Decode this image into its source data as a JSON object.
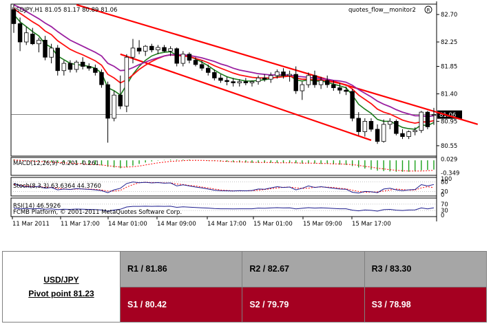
{
  "chart_data": {
    "type": "candlestick",
    "title": "USDJPY,H1  81.05 81.17 80.89 81.06",
    "indicator_label": "quotes_flow__monitor2",
    "price_axis": {
      "ticks": [
        "82.70",
        "82.25",
        "81.85",
        "81.40",
        "80.95",
        "80.55"
      ],
      "ylim": [
        80.38,
        82.87
      ],
      "current_price": "81.06"
    },
    "time_axis": {
      "ticks": [
        "11 Mar 2011",
        "11 Mar 17:00",
        "14 Mar 01:00",
        "14 Mar 09:00",
        "14 Mar 17:00",
        "15 Mar 01:00",
        "15 Mar 09:00",
        "15 Mar 17:00"
      ]
    },
    "candles": [
      {
        "o": 82.78,
        "h": 82.86,
        "l": 82.4,
        "c": 82.55
      },
      {
        "o": 82.55,
        "h": 82.65,
        "l": 82.1,
        "c": 82.25
      },
      {
        "o": 82.25,
        "h": 82.5,
        "l": 82.2,
        "c": 82.4
      },
      {
        "o": 82.38,
        "h": 82.48,
        "l": 82.2,
        "c": 82.22
      },
      {
        "o": 82.22,
        "h": 82.32,
        "l": 82.08,
        "c": 82.28
      },
      {
        "o": 82.28,
        "h": 82.35,
        "l": 81.95,
        "c": 82.0
      },
      {
        "o": 82.0,
        "h": 82.22,
        "l": 81.9,
        "c": 82.15
      },
      {
        "o": 82.15,
        "h": 82.2,
        "l": 81.7,
        "c": 81.78
      },
      {
        "o": 81.78,
        "h": 81.95,
        "l": 81.7,
        "c": 81.9
      },
      {
        "o": 81.9,
        "h": 81.95,
        "l": 81.75,
        "c": 81.8
      },
      {
        "o": 81.8,
        "h": 81.95,
        "l": 81.75,
        "c": 81.92
      },
      {
        "o": 81.92,
        "h": 82.0,
        "l": 81.8,
        "c": 81.85
      },
      {
        "o": 81.85,
        "h": 81.9,
        "l": 81.78,
        "c": 81.82
      },
      {
        "o": 81.82,
        "h": 81.88,
        "l": 81.7,
        "c": 81.75
      },
      {
        "o": 81.75,
        "h": 81.8,
        "l": 81.5,
        "c": 81.55
      },
      {
        "o": 81.55,
        "h": 81.6,
        "l": 80.6,
        "c": 81.0
      },
      {
        "o": 81.0,
        "h": 81.45,
        "l": 80.95,
        "c": 81.38
      },
      {
        "o": 81.38,
        "h": 81.7,
        "l": 81.15,
        "c": 81.2
      },
      {
        "o": 81.2,
        "h": 82.05,
        "l": 81.1,
        "c": 82.0
      },
      {
        "o": 82.0,
        "h": 82.3,
        "l": 81.9,
        "c": 82.15
      },
      {
        "o": 82.15,
        "h": 82.28,
        "l": 82.05,
        "c": 82.1
      },
      {
        "o": 82.1,
        "h": 82.2,
        "l": 82.02,
        "c": 82.18
      },
      {
        "o": 82.18,
        "h": 82.22,
        "l": 82.08,
        "c": 82.12
      },
      {
        "o": 82.12,
        "h": 82.2,
        "l": 82.05,
        "c": 82.16
      },
      {
        "o": 82.16,
        "h": 82.2,
        "l": 82.08,
        "c": 82.1
      },
      {
        "o": 82.1,
        "h": 82.18,
        "l": 82.02,
        "c": 82.14
      },
      {
        "o": 82.14,
        "h": 82.16,
        "l": 81.85,
        "c": 81.9
      },
      {
        "o": 81.9,
        "h": 82.1,
        "l": 81.85,
        "c": 82.05
      },
      {
        "o": 82.05,
        "h": 82.08,
        "l": 81.9,
        "c": 81.95
      },
      {
        "o": 81.95,
        "h": 82.0,
        "l": 81.85,
        "c": 81.88
      },
      {
        "o": 81.88,
        "h": 81.95,
        "l": 81.78,
        "c": 81.82
      },
      {
        "o": 81.82,
        "h": 81.88,
        "l": 81.7,
        "c": 81.75
      },
      {
        "o": 81.75,
        "h": 81.8,
        "l": 81.62,
        "c": 81.66
      },
      {
        "o": 81.66,
        "h": 81.72,
        "l": 81.58,
        "c": 81.62
      },
      {
        "o": 81.62,
        "h": 81.68,
        "l": 81.54,
        "c": 81.6
      },
      {
        "o": 81.6,
        "h": 81.66,
        "l": 81.52,
        "c": 81.58
      },
      {
        "o": 81.58,
        "h": 81.64,
        "l": 81.52,
        "c": 81.6
      },
      {
        "o": 81.6,
        "h": 81.66,
        "l": 81.54,
        "c": 81.58
      },
      {
        "o": 81.58,
        "h": 81.62,
        "l": 81.52,
        "c": 81.6
      },
      {
        "o": 81.6,
        "h": 81.7,
        "l": 81.55,
        "c": 81.66
      },
      {
        "o": 81.66,
        "h": 81.72,
        "l": 81.6,
        "c": 81.64
      },
      {
        "o": 81.64,
        "h": 81.75,
        "l": 81.58,
        "c": 81.7
      },
      {
        "o": 81.7,
        "h": 81.8,
        "l": 81.65,
        "c": 81.76
      },
      {
        "o": 81.76,
        "h": 81.82,
        "l": 81.65,
        "c": 81.7
      },
      {
        "o": 81.7,
        "h": 81.78,
        "l": 81.6,
        "c": 81.72
      },
      {
        "o": 81.72,
        "h": 81.85,
        "l": 81.4,
        "c": 81.45
      },
      {
        "o": 81.45,
        "h": 81.6,
        "l": 81.3,
        "c": 81.55
      },
      {
        "o": 81.55,
        "h": 81.75,
        "l": 81.5,
        "c": 81.7
      },
      {
        "o": 81.7,
        "h": 81.78,
        "l": 81.5,
        "c": 81.55
      },
      {
        "o": 81.55,
        "h": 81.68,
        "l": 81.48,
        "c": 81.62
      },
      {
        "o": 81.62,
        "h": 81.7,
        "l": 81.5,
        "c": 81.55
      },
      {
        "o": 81.55,
        "h": 81.62,
        "l": 81.45,
        "c": 81.5
      },
      {
        "o": 81.5,
        "h": 81.58,
        "l": 81.4,
        "c": 81.46
      },
      {
        "o": 81.46,
        "h": 81.52,
        "l": 81.38,
        "c": 81.44
      },
      {
        "o": 81.44,
        "h": 81.48,
        "l": 80.95,
        "c": 81.0
      },
      {
        "o": 81.0,
        "h": 81.1,
        "l": 80.72,
        "c": 80.78
      },
      {
        "o": 80.78,
        "h": 81.0,
        "l": 80.7,
        "c": 80.95
      },
      {
        "o": 80.95,
        "h": 81.0,
        "l": 80.78,
        "c": 80.82
      },
      {
        "o": 80.82,
        "h": 80.9,
        "l": 80.58,
        "c": 80.62
      },
      {
        "o": 80.62,
        "h": 80.98,
        "l": 80.6,
        "c": 80.9
      },
      {
        "o": 80.9,
        "h": 81.0,
        "l": 80.82,
        "c": 80.95
      },
      {
        "o": 80.95,
        "h": 80.98,
        "l": 80.72,
        "c": 80.75
      },
      {
        "o": 80.75,
        "h": 80.82,
        "l": 80.66,
        "c": 80.7
      },
      {
        "o": 80.7,
        "h": 80.8,
        "l": 80.66,
        "c": 80.78
      },
      {
        "o": 80.78,
        "h": 80.85,
        "l": 80.72,
        "c": 80.8
      },
      {
        "o": 80.8,
        "h": 81.12,
        "l": 80.76,
        "c": 81.1
      },
      {
        "o": 81.1,
        "h": 81.12,
        "l": 80.82,
        "c": 80.86
      },
      {
        "o": 81.05,
        "h": 81.17,
        "l": 80.89,
        "c": 81.06
      }
    ],
    "moving_averages": [
      {
        "name": "MA-fast",
        "color": "#1a7a1a",
        "values": [
          82.7,
          82.58,
          82.5,
          82.42,
          82.35,
          82.22,
          82.16,
          82.02,
          81.96,
          81.9,
          81.88,
          81.87,
          81.85,
          81.82,
          81.74,
          81.5,
          81.45,
          81.38,
          81.55,
          81.72,
          81.85,
          81.95,
          82.02,
          82.06,
          82.08,
          82.09,
          82.03,
          82.03,
          82.01,
          81.97,
          81.92,
          81.86,
          81.79,
          81.73,
          81.68,
          81.65,
          81.63,
          81.61,
          81.61,
          81.62,
          81.63,
          81.65,
          81.68,
          81.69,
          81.7,
          81.63,
          81.61,
          81.63,
          81.61,
          81.61,
          81.59,
          81.56,
          81.53,
          81.5,
          81.38,
          81.23,
          81.15,
          81.08,
          80.98,
          80.95,
          80.95,
          80.9,
          80.85,
          80.83,
          80.82,
          80.89,
          80.88,
          80.93
        ]
      },
      {
        "name": "MA-mid",
        "color": "#ff1010",
        "values": [
          82.8,
          82.72,
          82.65,
          82.58,
          82.52,
          82.43,
          82.37,
          82.27,
          82.2,
          82.13,
          82.08,
          82.04,
          81.99,
          81.94,
          81.87,
          81.72,
          81.66,
          81.58,
          81.63,
          81.71,
          81.8,
          81.87,
          81.93,
          81.98,
          82.02,
          82.04,
          82.03,
          82.02,
          82.01,
          81.98,
          81.95,
          81.91,
          81.86,
          81.82,
          81.78,
          81.74,
          81.71,
          81.69,
          81.67,
          81.66,
          81.66,
          81.66,
          81.67,
          81.68,
          81.69,
          81.66,
          81.64,
          81.64,
          81.63,
          81.63,
          81.61,
          81.59,
          81.57,
          81.55,
          81.48,
          81.38,
          81.31,
          81.24,
          81.15,
          81.1,
          81.07,
          81.02,
          80.97,
          80.94,
          80.92,
          80.94,
          80.94,
          80.96
        ]
      },
      {
        "name": "MA-slow",
        "color": "#9a1fa0",
        "values": [
          82.86,
          82.81,
          82.75,
          82.69,
          82.63,
          82.56,
          82.5,
          82.42,
          82.35,
          82.28,
          82.23,
          82.18,
          82.13,
          82.08,
          82.02,
          81.9,
          81.85,
          81.78,
          81.79,
          81.83,
          81.88,
          81.92,
          81.96,
          81.99,
          82.02,
          82.04,
          82.04,
          82.04,
          82.03,
          82.01,
          81.99,
          81.96,
          81.93,
          81.89,
          81.86,
          81.82,
          81.79,
          81.77,
          81.75,
          81.73,
          81.72,
          81.71,
          81.71,
          81.71,
          81.71,
          81.69,
          81.68,
          81.67,
          81.66,
          81.65,
          81.64,
          81.62,
          81.61,
          81.59,
          81.54,
          81.47,
          81.41,
          81.35,
          81.28,
          81.23,
          81.19,
          81.14,
          81.1,
          81.07,
          81.04,
          81.04,
          81.03,
          81.04
        ]
      }
    ],
    "channel_lines": [
      {
        "name": "upper-trendline",
        "color": "#ff0000",
        "from": {
          "bar": 10,
          "price": 82.86
        },
        "to": {
          "bar": 74,
          "price": 80.9
        }
      },
      {
        "name": "lower-trendline",
        "color": "#ff0000",
        "from": {
          "bar": 17,
          "price": 82.05
        },
        "to": {
          "bar": 57,
          "price": 80.64
        }
      }
    ],
    "macd": {
      "label": "MACD(12,26,9) -0.201 -0.261",
      "ticks": [
        "0.029",
        "-0.349"
      ],
      "ylim": [
        -0.42,
        0.08
      ],
      "histogram": [
        0.02,
        0.01,
        0.0,
        -0.01,
        -0.02,
        -0.03,
        -0.04,
        -0.06,
        -0.07,
        -0.08,
        -0.09,
        -0.1,
        -0.11,
        -0.12,
        -0.14,
        -0.18,
        -0.2,
        -0.22,
        -0.19,
        -0.15,
        -0.1,
        -0.06,
        -0.03,
        -0.01,
        0.01,
        0.02,
        0.02,
        0.02,
        0.02,
        0.01,
        0.0,
        -0.01,
        -0.02,
        -0.03,
        -0.04,
        -0.05,
        -0.06,
        -0.06,
        -0.07,
        -0.07,
        -0.07,
        -0.07,
        -0.07,
        -0.07,
        -0.07,
        -0.08,
        -0.09,
        -0.09,
        -0.09,
        -0.1,
        -0.1,
        -0.11,
        -0.12,
        -0.13,
        -0.16,
        -0.2,
        -0.23,
        -0.26,
        -0.29,
        -0.3,
        -0.31,
        -0.32,
        -0.32,
        -0.32,
        -0.31,
        -0.28,
        -0.27,
        -0.26
      ],
      "signal": [
        0.01,
        0.0,
        -0.01,
        -0.02,
        -0.03,
        -0.04,
        -0.05,
        -0.06,
        -0.07,
        -0.08,
        -0.09,
        -0.1,
        -0.11,
        -0.12,
        -0.13,
        -0.15,
        -0.17,
        -0.19,
        -0.19,
        -0.18,
        -0.16,
        -0.13,
        -0.1,
        -0.07,
        -0.05,
        -0.03,
        -0.02,
        -0.01,
        0.0,
        0.0,
        0.0,
        -0.01,
        -0.01,
        -0.02,
        -0.03,
        -0.04,
        -0.04,
        -0.05,
        -0.05,
        -0.06,
        -0.06,
        -0.06,
        -0.07,
        -0.07,
        -0.07,
        -0.07,
        -0.08,
        -0.08,
        -0.08,
        -0.09,
        -0.09,
        -0.1,
        -0.1,
        -0.11,
        -0.12,
        -0.14,
        -0.17,
        -0.19,
        -0.22,
        -0.24,
        -0.26,
        -0.28,
        -0.29,
        -0.3,
        -0.3,
        -0.3,
        -0.29,
        -0.28
      ]
    },
    "stochastic": {
      "label": "Stoch(8,3,3) 63.6364 44.3760",
      "ticks": [
        "100",
        "80",
        "20",
        "0"
      ],
      "ylim": [
        0,
        100
      ],
      "main": [
        70,
        55,
        50,
        48,
        52,
        40,
        45,
        30,
        35,
        32,
        38,
        35,
        33,
        30,
        25,
        12,
        30,
        40,
        70,
        80,
        75,
        78,
        74,
        76,
        72,
        74,
        55,
        62,
        55,
        48,
        42,
        35,
        28,
        25,
        24,
        23,
        25,
        24,
        26,
        35,
        34,
        42,
        50,
        45,
        48,
        30,
        40,
        55,
        45,
        50,
        45,
        40,
        35,
        34,
        15,
        10,
        20,
        18,
        12,
        35,
        40,
        30,
        25,
        30,
        32,
        63,
        55,
        64
      ],
      "signal": [
        65,
        60,
        55,
        51,
        50,
        47,
        46,
        40,
        37,
        33,
        35,
        36,
        35,
        33,
        29,
        22,
        22,
        27,
        47,
        63,
        75,
        78,
        76,
        76,
        74,
        74,
        67,
        64,
        58,
        55,
        48,
        42,
        35,
        29,
        26,
        24,
        24,
        24,
        25,
        28,
        32,
        37,
        42,
        46,
        48,
        42,
        39,
        41,
        47,
        48,
        47,
        45,
        40,
        36,
        28,
        20,
        15,
        16,
        17,
        22,
        29,
        35,
        32,
        28,
        29,
        42,
        50,
        44
      ]
    },
    "rsi": {
      "label": "RSI(14) 46.5926",
      "ticks": [
        "70",
        "30",
        "0"
      ],
      "ylim": [
        0,
        100
      ],
      "values": [
        45,
        40,
        42,
        40,
        42,
        38,
        40,
        36,
        38,
        37,
        39,
        38,
        37,
        36,
        33,
        25,
        33,
        38,
        52,
        56,
        56,
        57,
        56,
        57,
        56,
        57,
        50,
        53,
        51,
        49,
        47,
        45,
        42,
        41,
        41,
        40,
        41,
        41,
        41,
        45,
        44,
        46,
        48,
        46,
        47,
        40,
        44,
        48,
        45,
        47,
        45,
        43,
        41,
        41,
        32,
        28,
        33,
        31,
        26,
        35,
        37,
        32,
        30,
        33,
        34,
        46,
        40,
        47
      ]
    },
    "copyright": "FCMB Platform, © 2001-2011 MetaQuotes Software Corp."
  },
  "pivot": {
    "pair": "USD/JPY",
    "pivot_label": "Pivot point 81.23",
    "resistance": [
      "R1 / 81.86",
      "R2 / 82.67",
      "R3 / 83.30"
    ],
    "support": [
      "S1 / 80.42",
      "S2 / 79.79",
      "S3 / 78.98"
    ],
    "resistance_color": "#a6a6a6",
    "support_color": "#a50021"
  }
}
